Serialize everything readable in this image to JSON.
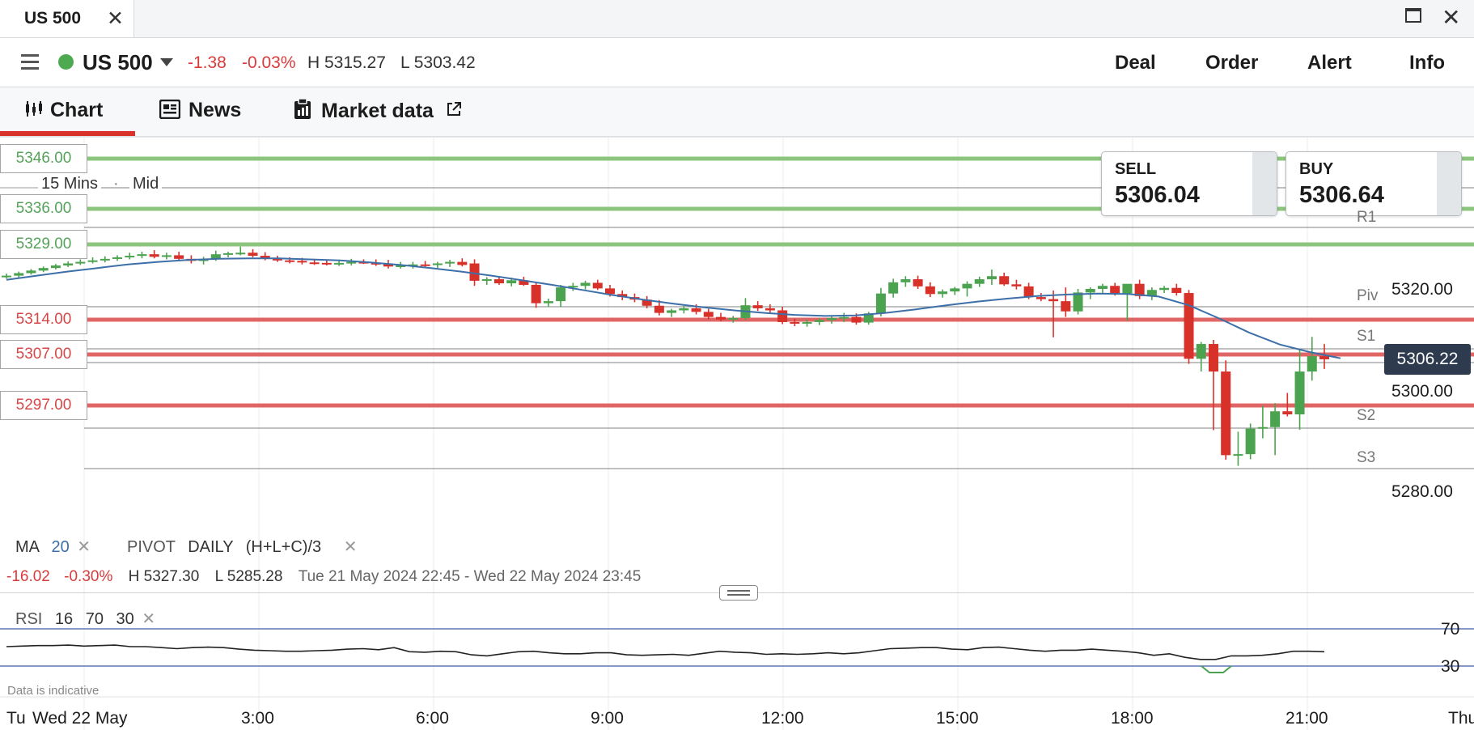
{
  "window": {
    "tab_title": "US 500",
    "close_glyph": "✕",
    "close_window_glyph": "✕"
  },
  "header": {
    "instrument": "US 500",
    "change_abs": "-1.38",
    "change_pct": "-0.03%",
    "high": "H 5315.27",
    "low": "L 5303.42",
    "actions": [
      "Deal",
      "Order",
      "Alert",
      "Info"
    ],
    "status_color": "#4daa51"
  },
  "nav": {
    "tabs": [
      {
        "label": "Chart",
        "icon": "candlestick-icon",
        "active": true
      },
      {
        "label": "News",
        "icon": "news-icon"
      },
      {
        "label": "Market data",
        "icon": "clipboard-icon",
        "external": true
      }
    ]
  },
  "chart": {
    "timeframe": "15 Mins",
    "price_mode": "Mid",
    "alert_levels": {
      "green": [
        "5346.00",
        "5336.00",
        "5329.00"
      ],
      "red": [
        "5314.00",
        "5307.00",
        "5297.00"
      ]
    },
    "sell": {
      "label": "SELL",
      "price": "5306.04"
    },
    "buy": {
      "label": "BUY",
      "price": "5306.64"
    },
    "pivot_labels": [
      "R1",
      "Piv",
      "S1",
      "S2",
      "S3"
    ],
    "y_ticks": [
      "5320.00",
      "5300.00",
      "5280.00"
    ],
    "current_price": "5306.22",
    "x_ticks": [
      "Tu",
      "Wed 22 May",
      "3:00",
      "6:00",
      "9:00",
      "12:00",
      "15:00",
      "18:00",
      "21:00",
      "Thu"
    ],
    "colors": {
      "up": "#4ca34f",
      "down": "#d8312a",
      "ma": "#3d6fa8",
      "green_level": "#8cc67e",
      "red_level": "#e06666",
      "pivot": "#9a9a9a"
    }
  },
  "indicators": {
    "ma": {
      "name": "MA",
      "period": "20"
    },
    "pivot": {
      "name": "PIVOT",
      "period": "DAILY",
      "formula": "(H+L+C)/3"
    },
    "range": {
      "change": "-16.02",
      "change_pct": "-0.30%",
      "high": "H 5327.30",
      "low": "L 5285.28",
      "period": "Tue 21 May 2024 22:45 - Wed 22 May 2024 23:45"
    },
    "rsi": {
      "name": "RSI",
      "period": "16",
      "upper": "70",
      "lower": "30"
    },
    "disclaimer": "Data is indicative"
  },
  "chart_data": {
    "type": "candlestick",
    "series": [
      {
        "name": "MA 20",
        "values": [
          5321.8,
          5322.6,
          5323.4,
          5324.1,
          5324.8,
          5325.3,
          5325.7,
          5325.9,
          5326.0,
          5326.0,
          5325.8,
          5325.6,
          5325.2,
          5324.7,
          5324.1,
          5323.4,
          5322.6,
          5321.7,
          5320.8,
          5319.8,
          5318.8,
          5317.9,
          5317.1,
          5316.4,
          5315.8,
          5315.3,
          5314.9,
          5314.7,
          5314.8,
          5315.3,
          5316.0,
          5316.8,
          5317.5,
          5318.1,
          5318.6,
          5318.9,
          5319.1,
          5319.0,
          5318.5,
          5316.8,
          5314.2,
          5311.4,
          5309.1,
          5307.6,
          5306.4
        ]
      }
    ],
    "ylim": [
      5274,
      5350
    ],
    "y_ticks": [
      5280,
      5300,
      5320
    ],
    "x_ticks": [
      "Wed 22 May",
      "3:00",
      "6:00",
      "9:00",
      "12:00",
      "15:00",
      "18:00",
      "21:00"
    ],
    "rsi": {
      "upper": 70,
      "lower": 30
    }
  }
}
